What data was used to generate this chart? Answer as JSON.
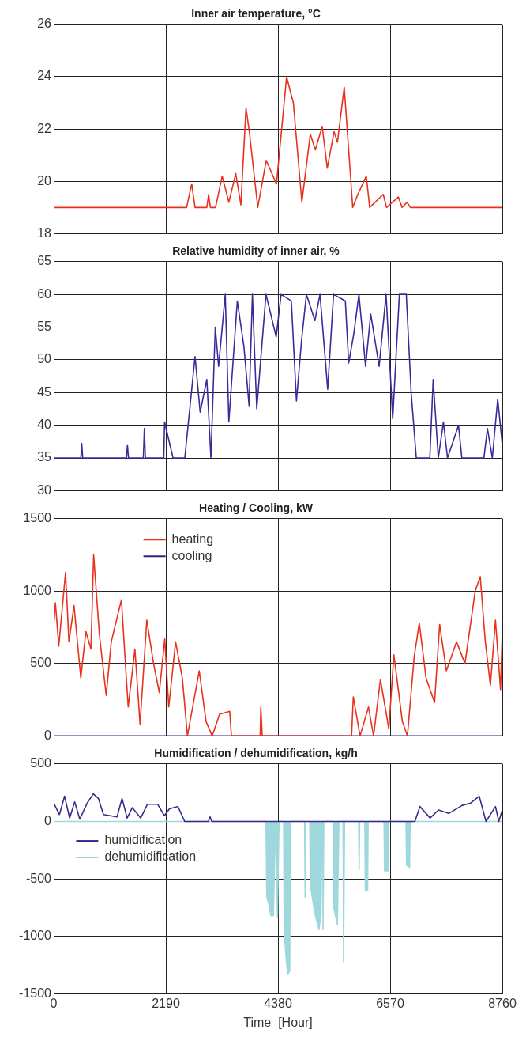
{
  "chart_data": [
    {
      "type": "line",
      "title": "Inner air temperature, °C",
      "xlim": [
        0,
        8760
      ],
      "xticks": [
        0,
        2190,
        4380,
        6570,
        8760
      ],
      "ylim": [
        18,
        26
      ],
      "yticks": [
        18,
        20,
        22,
        24,
        26
      ],
      "grid": true,
      "tick_labels": "y",
      "marker": "none",
      "series": [
        {
          "color": "#e8321e",
          "x": [
            0,
            2595,
            2695,
            2760,
            2990,
            3025,
            3060,
            3160,
            3290,
            3420,
            3555,
            3655,
            3755,
            3820,
            3985,
            4150,
            4350,
            4548,
            4680,
            4846,
            5011,
            5110,
            5243,
            5342,
            5475,
            5541,
            5673,
            5839,
            5938,
            6104,
            6170,
            6435,
            6500,
            6730,
            6800,
            6900,
            6965,
            8760
          ],
          "values": [
            19,
            19,
            19.9,
            19,
            19,
            19.5,
            19,
            19,
            20.2,
            19.2,
            20.3,
            19.1,
            22.8,
            21.9,
            19,
            20.8,
            19.9,
            24,
            23,
            19.2,
            21.8,
            21.2,
            22.1,
            20.5,
            21.9,
            21.5,
            23.6,
            19,
            19.5,
            20.2,
            19,
            19.5,
            19,
            19.4,
            19,
            19.2,
            19,
            19
          ]
        }
      ]
    },
    {
      "type": "line",
      "title": "Relative humidity of inner air, %",
      "xlim": [
        0,
        8760
      ],
      "xticks": [
        0,
        2190,
        4380,
        6570,
        8760
      ],
      "ylim": [
        30,
        65
      ],
      "yticks": [
        30,
        35,
        40,
        45,
        50,
        55,
        60,
        65
      ],
      "grid": true,
      "tick_labels": "y",
      "marker": "none",
      "series": [
        {
          "color": "#3b2a9a",
          "x": [
            0,
            530,
            548,
            566,
            1420,
            1440,
            1460,
            1750,
            1770,
            1790,
            2150,
            2165,
            2330,
            2560,
            2760,
            2860,
            2990,
            3070,
            3155,
            3220,
            3350,
            3420,
            3585,
            3715,
            3815,
            3880,
            3965,
            4145,
            4345,
            4440,
            4640,
            4740,
            4840,
            4935,
            5100,
            5200,
            5350,
            5465,
            5695,
            5760,
            5860,
            5960,
            6090,
            6190,
            6355,
            6490,
            6620,
            6750,
            6885,
            6980,
            7080,
            7345,
            7410,
            7510,
            7610,
            7690,
            7905,
            7970,
            8400,
            8470,
            8565,
            8670,
            8760
          ],
          "values": [
            35,
            35,
            37.2,
            35,
            35,
            37,
            35,
            35,
            39.5,
            35,
            35,
            40.5,
            35,
            35,
            50.5,
            42,
            47,
            35,
            55,
            49,
            60,
            40.5,
            59,
            52,
            43,
            60,
            42.5,
            60,
            53.5,
            60,
            59,
            43.7,
            53,
            60,
            56,
            60,
            45.5,
            60,
            59,
            49.5,
            54,
            60,
            49,
            57,
            49,
            60,
            41,
            60,
            60,
            45,
            35,
            35,
            47,
            35,
            40.5,
            35,
            40,
            35,
            35,
            39.5,
            35,
            44,
            37
          ]
        }
      ]
    },
    {
      "type": "line",
      "title": "Heating / Cooling, kW",
      "xlim": [
        0,
        8760
      ],
      "xticks": [
        0,
        2190,
        4380,
        6570,
        8760
      ],
      "ylim": [
        0,
        1500
      ],
      "yticks": [
        0,
        500,
        1000,
        1500
      ],
      "grid": true,
      "tick_labels": "y",
      "marker": "none",
      "legend": "top left",
      "series": [
        {
          "name": "heating",
          "color": "#e8321e",
          "x": [
            0,
            33,
            99,
            231,
            297,
            397,
            529,
            628,
            727,
            780,
            892,
            1025,
            1124,
            1322,
            1454,
            1586,
            1686,
            1818,
            1950,
            2062,
            2168,
            2247,
            2380,
            2512,
            2611,
            2842,
            2975,
            3094,
            3239,
            3437,
            3470,
            4032,
            4045,
            4072,
            5817,
            5850,
            5982,
            6147,
            6246,
            6379,
            6544,
            6643,
            6808,
            6907,
            7040,
            7139,
            7271,
            7437,
            7536,
            7668,
            7866,
            8031,
            8230,
            8329,
            8428,
            8527,
            8626,
            8725,
            8760
          ],
          "values": [
            760,
            920,
            620,
            1130,
            650,
            900,
            400,
            720,
            600,
            1250,
            700,
            280,
            650,
            940,
            200,
            600,
            80,
            800,
            500,
            300,
            670,
            200,
            650,
            400,
            0,
            450,
            100,
            0,
            150,
            170,
            0,
            0,
            200,
            0,
            0,
            270,
            0,
            200,
            0,
            390,
            50,
            560,
            100,
            0,
            550,
            780,
            400,
            230,
            770,
            450,
            650,
            500,
            1000,
            1100,
            650,
            350,
            800,
            320,
            720
          ]
        },
        {
          "name": "cooling",
          "color": "#2e1f8c",
          "x": [
            0,
            8760
          ],
          "values": [
            0,
            0
          ]
        }
      ]
    },
    {
      "type": "line",
      "title": "Humidification / dehumidification, kg/h",
      "xlabel": "Time  [Hour]",
      "xlim": [
        0,
        8760
      ],
      "xticks": [
        0,
        2190,
        4380,
        6570,
        8760
      ],
      "ylim": [
        -1500,
        500
      ],
      "yticks": [
        -1500,
        -1000,
        -500,
        0,
        500
      ],
      "grid": true,
      "marker": "none",
      "legend": "left",
      "series": [
        {
          "name": "humidification",
          "color": "#3b2a8c",
          "x": [
            0,
            112,
            212,
            311,
            410,
            509,
            654,
            773,
            873,
            972,
            1236,
            1335,
            1434,
            1534,
            1699,
            1831,
            2029,
            2161,
            2261,
            2426,
            2558,
            3020,
            3054,
            3087,
            7053,
            7152,
            7350,
            7515,
            7714,
            7978,
            8143,
            8309,
            8441,
            8626,
            8692,
            8760
          ],
          "values": [
            160,
            60,
            220,
            30,
            170,
            20,
            160,
            240,
            200,
            60,
            40,
            200,
            30,
            120,
            30,
            150,
            150,
            50,
            110,
            130,
            0,
            0,
            40,
            0,
            0,
            130,
            30,
            100,
            70,
            140,
            160,
            220,
            0,
            130,
            0,
            100
          ]
        },
        {
          "name": "dehumidification",
          "type": "area",
          "color": "#9fd8dc",
          "x": [
            0,
            4145,
            4160,
            4200,
            4240,
            4290,
            4330,
            4370,
            4400,
            4490,
            4500,
            4540,
            4570,
            4610,
            4620,
            4900,
            4910,
            4920,
            5000,
            5010,
            5100,
            5180,
            5220,
            5240,
            5255,
            5260,
            5275,
            5460,
            5470,
            5540,
            5570,
            5650,
            5660,
            5680,
            5955,
            5965,
            5975,
            6075,
            6085,
            6130,
            6140,
            6450,
            6460,
            6525,
            6535,
            6880,
            6890,
            6950,
            6960,
            8760
          ],
          "values": [
            0,
            0,
            -650,
            -720,
            -820,
            -820,
            0,
            -830,
            0,
            0,
            -950,
            -1200,
            -1330,
            -1300,
            0,
            0,
            -660,
            0,
            0,
            -550,
            -800,
            -940,
            -800,
            0,
            0,
            -940,
            0,
            0,
            -750,
            -900,
            0,
            0,
            -1220,
            0,
            0,
            -420,
            0,
            0,
            -600,
            -600,
            0,
            0,
            -430,
            -430,
            0,
            0,
            -380,
            -400,
            0,
            0
          ]
        }
      ]
    }
  ]
}
